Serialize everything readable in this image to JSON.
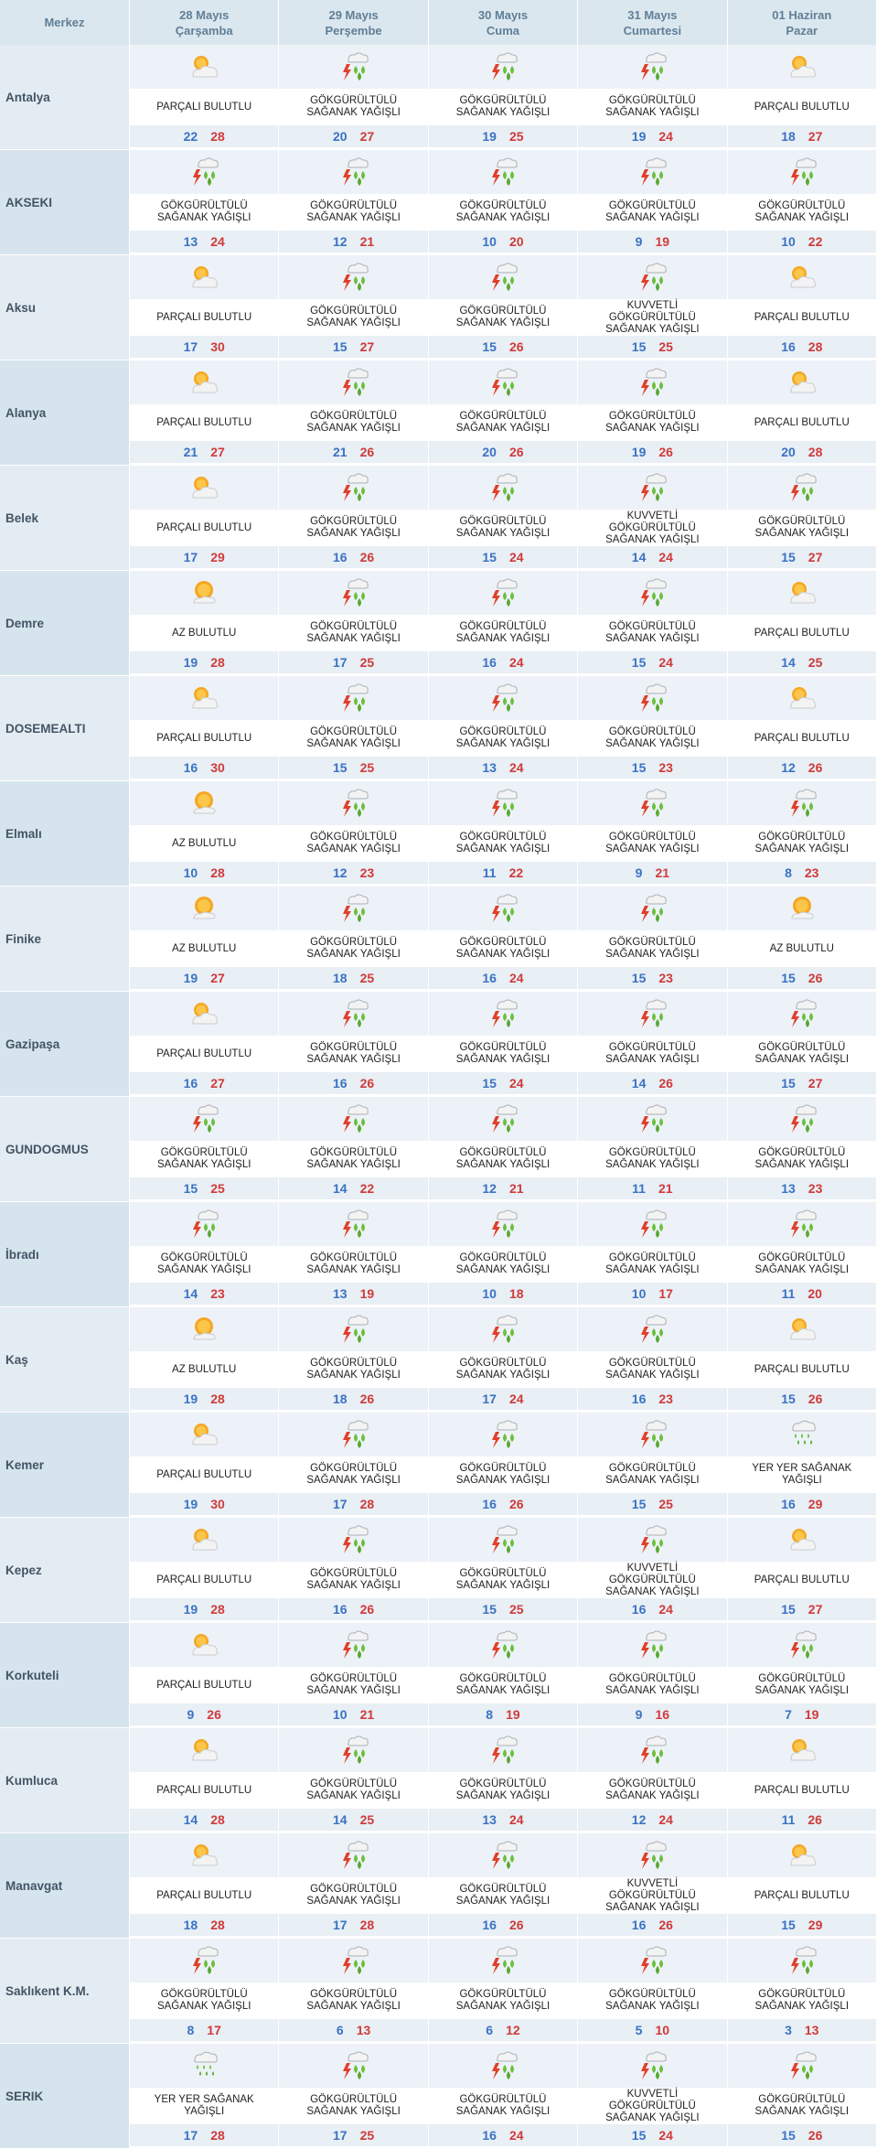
{
  "header": {
    "city_label": "Merkez",
    "days": [
      {
        "date": "28 Mayıs",
        "weekday": "Çarşamba"
      },
      {
        "date": "29 Mayıs",
        "weekday": "Perşembe"
      },
      {
        "date": "30 Mayıs",
        "weekday": "Cuma"
      },
      {
        "date": "31 Mayıs",
        "weekday": "Cumartesi"
      },
      {
        "date": "01 Haziran",
        "weekday": "Pazar"
      }
    ]
  },
  "colors": {
    "min_temp": "#3a72c4",
    "max_temp": "#d03a3a",
    "header_bg": "#dbe7ee"
  },
  "rows": [
    {
      "city": "Antalya",
      "days": [
        {
          "icon": "partly-cloudy-icon",
          "desc": "PARÇALI BULUTLU",
          "min": "22",
          "max": "28"
        },
        {
          "icon": "thunder-shower-icon",
          "desc": "GÖKGÜRÜLTÜLÜ SAĞANAK YAĞIŞLI",
          "min": "20",
          "max": "27"
        },
        {
          "icon": "thunder-shower-icon",
          "desc": "GÖKGÜRÜLTÜLÜ SAĞANAK YAĞIŞLI",
          "min": "19",
          "max": "25"
        },
        {
          "icon": "thunder-shower-icon",
          "desc": "GÖKGÜRÜLTÜLÜ SAĞANAK YAĞIŞLI",
          "min": "19",
          "max": "24"
        },
        {
          "icon": "partly-cloudy-icon",
          "desc": "PARÇALI BULUTLU",
          "min": "18",
          "max": "27"
        }
      ]
    },
    {
      "city": "AKSEKI",
      "days": [
        {
          "icon": "thunder-shower-icon",
          "desc": "GÖKGÜRÜLTÜLÜ SAĞANAK YAĞIŞLI",
          "min": "13",
          "max": "24"
        },
        {
          "icon": "thunder-shower-icon",
          "desc": "GÖKGÜRÜLTÜLÜ SAĞANAK YAĞIŞLI",
          "min": "12",
          "max": "21"
        },
        {
          "icon": "thunder-shower-icon",
          "desc": "GÖKGÜRÜLTÜLÜ SAĞANAK YAĞIŞLI",
          "min": "10",
          "max": "20"
        },
        {
          "icon": "thunder-shower-icon",
          "desc": "GÖKGÜRÜLTÜLÜ SAĞANAK YAĞIŞLI",
          "min": "9",
          "max": "19"
        },
        {
          "icon": "thunder-shower-icon",
          "desc": "GÖKGÜRÜLTÜLÜ SAĞANAK YAĞIŞLI",
          "min": "10",
          "max": "22"
        }
      ]
    },
    {
      "city": "Aksu",
      "days": [
        {
          "icon": "partly-cloudy-icon",
          "desc": "PARÇALI BULUTLU",
          "min": "17",
          "max": "30"
        },
        {
          "icon": "thunder-shower-icon",
          "desc": "GÖKGÜRÜLTÜLÜ SAĞANAK YAĞIŞLI",
          "min": "15",
          "max": "27"
        },
        {
          "icon": "thunder-shower-icon",
          "desc": "GÖKGÜRÜLTÜLÜ SAĞANAK YAĞIŞLI",
          "min": "15",
          "max": "26"
        },
        {
          "icon": "thunder-shower-icon",
          "desc": "KUVVETLİ GÖKGÜRÜLTÜLÜ SAĞANAK YAĞIŞLI",
          "min": "15",
          "max": "25"
        },
        {
          "icon": "partly-cloudy-icon",
          "desc": "PARÇALI BULUTLU",
          "min": "16",
          "max": "28"
        }
      ]
    },
    {
      "city": "Alanya",
      "days": [
        {
          "icon": "partly-cloudy-icon",
          "desc": "PARÇALI BULUTLU",
          "min": "21",
          "max": "27"
        },
        {
          "icon": "thunder-shower-icon",
          "desc": "GÖKGÜRÜLTÜLÜ SAĞANAK YAĞIŞLI",
          "min": "21",
          "max": "26"
        },
        {
          "icon": "thunder-shower-icon",
          "desc": "GÖKGÜRÜLTÜLÜ SAĞANAK YAĞIŞLI",
          "min": "20",
          "max": "26"
        },
        {
          "icon": "thunder-shower-icon",
          "desc": "GÖKGÜRÜLTÜLÜ SAĞANAK YAĞIŞLI",
          "min": "19",
          "max": "26"
        },
        {
          "icon": "partly-cloudy-icon",
          "desc": "PARÇALI BULUTLU",
          "min": "20",
          "max": "28"
        }
      ]
    },
    {
      "city": "Belek",
      "days": [
        {
          "icon": "partly-cloudy-icon",
          "desc": "PARÇALI BULUTLU",
          "min": "17",
          "max": "29"
        },
        {
          "icon": "thunder-shower-icon",
          "desc": "GÖKGÜRÜLTÜLÜ SAĞANAK YAĞIŞLI",
          "min": "16",
          "max": "26"
        },
        {
          "icon": "thunder-shower-icon",
          "desc": "GÖKGÜRÜLTÜLÜ SAĞANAK YAĞIŞLI",
          "min": "15",
          "max": "24"
        },
        {
          "icon": "thunder-shower-icon",
          "desc": "KUVVETLİ GÖKGÜRÜLTÜLÜ SAĞANAK YAĞIŞLI",
          "min": "14",
          "max": "24"
        },
        {
          "icon": "thunder-shower-icon",
          "desc": "GÖKGÜRÜLTÜLÜ SAĞANAK YAĞIŞLI",
          "min": "15",
          "max": "27"
        }
      ]
    },
    {
      "city": "Demre",
      "days": [
        {
          "icon": "mostly-sunny-icon",
          "desc": "AZ BULUTLU",
          "min": "19",
          "max": "28"
        },
        {
          "icon": "thunder-shower-icon",
          "desc": "GÖKGÜRÜLTÜLÜ SAĞANAK YAĞIŞLI",
          "min": "17",
          "max": "25"
        },
        {
          "icon": "thunder-shower-icon",
          "desc": "GÖKGÜRÜLTÜLÜ SAĞANAK YAĞIŞLI",
          "min": "16",
          "max": "24"
        },
        {
          "icon": "thunder-shower-icon",
          "desc": "GÖKGÜRÜLTÜLÜ SAĞANAK YAĞIŞLI",
          "min": "15",
          "max": "24"
        },
        {
          "icon": "partly-cloudy-icon",
          "desc": "PARÇALI BULUTLU",
          "min": "14",
          "max": "25"
        }
      ]
    },
    {
      "city": "DOSEMEALTI",
      "days": [
        {
          "icon": "partly-cloudy-icon",
          "desc": "PARÇALI BULUTLU",
          "min": "16",
          "max": "30"
        },
        {
          "icon": "thunder-shower-icon",
          "desc": "GÖKGÜRÜLTÜLÜ SAĞANAK YAĞIŞLI",
          "min": "15",
          "max": "25"
        },
        {
          "icon": "thunder-shower-icon",
          "desc": "GÖKGÜRÜLTÜLÜ SAĞANAK YAĞIŞLI",
          "min": "13",
          "max": "24"
        },
        {
          "icon": "thunder-shower-icon",
          "desc": "GÖKGÜRÜLTÜLÜ SAĞANAK YAĞIŞLI",
          "min": "15",
          "max": "23"
        },
        {
          "icon": "partly-cloudy-icon",
          "desc": "PARÇALI BULUTLU",
          "min": "12",
          "max": "26"
        }
      ]
    },
    {
      "city": "Elmalı",
      "days": [
        {
          "icon": "mostly-sunny-icon",
          "desc": "AZ BULUTLU",
          "min": "10",
          "max": "28"
        },
        {
          "icon": "thunder-shower-icon",
          "desc": "GÖKGÜRÜLTÜLÜ SAĞANAK YAĞIŞLI",
          "min": "12",
          "max": "23"
        },
        {
          "icon": "thunder-shower-icon",
          "desc": "GÖKGÜRÜLTÜLÜ SAĞANAK YAĞIŞLI",
          "min": "11",
          "max": "22"
        },
        {
          "icon": "thunder-shower-icon",
          "desc": "GÖKGÜRÜLTÜLÜ SAĞANAK YAĞIŞLI",
          "min": "9",
          "max": "21"
        },
        {
          "icon": "thunder-shower-icon",
          "desc": "GÖKGÜRÜLTÜLÜ SAĞANAK YAĞIŞLI",
          "min": "8",
          "max": "23"
        }
      ]
    },
    {
      "city": "Finike",
      "days": [
        {
          "icon": "mostly-sunny-icon",
          "desc": "AZ BULUTLU",
          "min": "19",
          "max": "27"
        },
        {
          "icon": "thunder-shower-icon",
          "desc": "GÖKGÜRÜLTÜLÜ SAĞANAK YAĞIŞLI",
          "min": "18",
          "max": "25"
        },
        {
          "icon": "thunder-shower-icon",
          "desc": "GÖKGÜRÜLTÜLÜ SAĞANAK YAĞIŞLI",
          "min": "16",
          "max": "24"
        },
        {
          "icon": "thunder-shower-icon",
          "desc": "GÖKGÜRÜLTÜLÜ SAĞANAK YAĞIŞLI",
          "min": "15",
          "max": "23"
        },
        {
          "icon": "mostly-sunny-icon",
          "desc": "AZ BULUTLU",
          "min": "15",
          "max": "26"
        }
      ]
    },
    {
      "city": "Gazipaşa",
      "days": [
        {
          "icon": "partly-cloudy-icon",
          "desc": "PARÇALI BULUTLU",
          "min": "16",
          "max": "27"
        },
        {
          "icon": "thunder-shower-icon",
          "desc": "GÖKGÜRÜLTÜLÜ SAĞANAK YAĞIŞLI",
          "min": "16",
          "max": "26"
        },
        {
          "icon": "thunder-shower-icon",
          "desc": "GÖKGÜRÜLTÜLÜ SAĞANAK YAĞIŞLI",
          "min": "15",
          "max": "24"
        },
        {
          "icon": "thunder-shower-icon",
          "desc": "GÖKGÜRÜLTÜLÜ SAĞANAK YAĞIŞLI",
          "min": "14",
          "max": "26"
        },
        {
          "icon": "thunder-shower-icon",
          "desc": "GÖKGÜRÜLTÜLÜ SAĞANAK YAĞIŞLI",
          "min": "15",
          "max": "27"
        }
      ]
    },
    {
      "city": "GUNDOGMUS",
      "days": [
        {
          "icon": "thunder-shower-icon",
          "desc": "GÖKGÜRÜLTÜLÜ SAĞANAK YAĞIŞLI",
          "min": "15",
          "max": "25"
        },
        {
          "icon": "thunder-shower-icon",
          "desc": "GÖKGÜRÜLTÜLÜ SAĞANAK YAĞIŞLI",
          "min": "14",
          "max": "22"
        },
        {
          "icon": "thunder-shower-icon",
          "desc": "GÖKGÜRÜLTÜLÜ SAĞANAK YAĞIŞLI",
          "min": "12",
          "max": "21"
        },
        {
          "icon": "thunder-shower-icon",
          "desc": "GÖKGÜRÜLTÜLÜ SAĞANAK YAĞIŞLI",
          "min": "11",
          "max": "21"
        },
        {
          "icon": "thunder-shower-icon",
          "desc": "GÖKGÜRÜLTÜLÜ SAĞANAK YAĞIŞLI",
          "min": "13",
          "max": "23"
        }
      ]
    },
    {
      "city": "İbradı",
      "days": [
        {
          "icon": "thunder-shower-icon",
          "desc": "GÖKGÜRÜLTÜLÜ SAĞANAK YAĞIŞLI",
          "min": "14",
          "max": "23"
        },
        {
          "icon": "thunder-shower-icon",
          "desc": "GÖKGÜRÜLTÜLÜ SAĞANAK YAĞIŞLI",
          "min": "13",
          "max": "19"
        },
        {
          "icon": "thunder-shower-icon",
          "desc": "GÖKGÜRÜLTÜLÜ SAĞANAK YAĞIŞLI",
          "min": "10",
          "max": "18"
        },
        {
          "icon": "thunder-shower-icon",
          "desc": "GÖKGÜRÜLTÜLÜ SAĞANAK YAĞIŞLI",
          "min": "10",
          "max": "17"
        },
        {
          "icon": "thunder-shower-icon",
          "desc": "GÖKGÜRÜLTÜLÜ SAĞANAK YAĞIŞLI",
          "min": "11",
          "max": "20"
        }
      ]
    },
    {
      "city": "Kaş",
      "days": [
        {
          "icon": "mostly-sunny-icon",
          "desc": "AZ BULUTLU",
          "min": "19",
          "max": "28"
        },
        {
          "icon": "thunder-shower-icon",
          "desc": "GÖKGÜRÜLTÜLÜ SAĞANAK YAĞIŞLI",
          "min": "18",
          "max": "26"
        },
        {
          "icon": "thunder-shower-icon",
          "desc": "GÖKGÜRÜLTÜLÜ SAĞANAK YAĞIŞLI",
          "min": "17",
          "max": "24"
        },
        {
          "icon": "thunder-shower-icon",
          "desc": "GÖKGÜRÜLTÜLÜ SAĞANAK YAĞIŞLI",
          "min": "16",
          "max": "23"
        },
        {
          "icon": "partly-cloudy-icon",
          "desc": "PARÇALI BULUTLU",
          "min": "15",
          "max": "26"
        }
      ]
    },
    {
      "city": "Kemer",
      "days": [
        {
          "icon": "partly-cloudy-icon",
          "desc": "PARÇALI BULUTLU",
          "min": "19",
          "max": "30"
        },
        {
          "icon": "thunder-shower-icon",
          "desc": "GÖKGÜRÜLTÜLÜ SAĞANAK YAĞIŞLI",
          "min": "17",
          "max": "28"
        },
        {
          "icon": "thunder-shower-icon",
          "desc": "GÖKGÜRÜLTÜLÜ SAĞANAK YAĞIŞLI",
          "min": "16",
          "max": "26"
        },
        {
          "icon": "thunder-shower-icon",
          "desc": "GÖKGÜRÜLTÜLÜ SAĞANAK YAĞIŞLI",
          "min": "15",
          "max": "25"
        },
        {
          "icon": "shower-icon",
          "desc": "YER YER SAĞANAK YAĞIŞLI",
          "min": "16",
          "max": "29"
        }
      ]
    },
    {
      "city": "Kepez",
      "days": [
        {
          "icon": "partly-cloudy-icon",
          "desc": "PARÇALI BULUTLU",
          "min": "19",
          "max": "28"
        },
        {
          "icon": "thunder-shower-icon",
          "desc": "GÖKGÜRÜLTÜLÜ SAĞANAK YAĞIŞLI",
          "min": "16",
          "max": "26"
        },
        {
          "icon": "thunder-shower-icon",
          "desc": "GÖKGÜRÜLTÜLÜ SAĞANAK YAĞIŞLI",
          "min": "15",
          "max": "25"
        },
        {
          "icon": "thunder-shower-icon",
          "desc": "KUVVETLİ GÖKGÜRÜLTÜLÜ SAĞANAK YAĞIŞLI",
          "min": "16",
          "max": "24"
        },
        {
          "icon": "partly-cloudy-icon",
          "desc": "PARÇALI BULUTLU",
          "min": "15",
          "max": "27"
        }
      ]
    },
    {
      "city": "Korkuteli",
      "days": [
        {
          "icon": "partly-cloudy-icon",
          "desc": "PARÇALI BULUTLU",
          "min": "9",
          "max": "26"
        },
        {
          "icon": "thunder-shower-icon",
          "desc": "GÖKGÜRÜLTÜLÜ SAĞANAK YAĞIŞLI",
          "min": "10",
          "max": "21"
        },
        {
          "icon": "thunder-shower-icon",
          "desc": "GÖKGÜRÜLTÜLÜ SAĞANAK YAĞIŞLI",
          "min": "8",
          "max": "19"
        },
        {
          "icon": "thunder-shower-icon",
          "desc": "GÖKGÜRÜLTÜLÜ SAĞANAK YAĞIŞLI",
          "min": "9",
          "max": "16"
        },
        {
          "icon": "thunder-shower-icon",
          "desc": "GÖKGÜRÜLTÜLÜ SAĞANAK YAĞIŞLI",
          "min": "7",
          "max": "19"
        }
      ]
    },
    {
      "city": "Kumluca",
      "days": [
        {
          "icon": "partly-cloudy-icon",
          "desc": "PARÇALI BULUTLU",
          "min": "14",
          "max": "28"
        },
        {
          "icon": "thunder-shower-icon",
          "desc": "GÖKGÜRÜLTÜLÜ SAĞANAK YAĞIŞLI",
          "min": "14",
          "max": "25"
        },
        {
          "icon": "thunder-shower-icon",
          "desc": "GÖKGÜRÜLTÜLÜ SAĞANAK YAĞIŞLI",
          "min": "13",
          "max": "24"
        },
        {
          "icon": "thunder-shower-icon",
          "desc": "GÖKGÜRÜLTÜLÜ SAĞANAK YAĞIŞLI",
          "min": "12",
          "max": "24"
        },
        {
          "icon": "partly-cloudy-icon",
          "desc": "PARÇALI BULUTLU",
          "min": "11",
          "max": "26"
        }
      ]
    },
    {
      "city": "Manavgat",
      "days": [
        {
          "icon": "partly-cloudy-icon",
          "desc": "PARÇALI BULUTLU",
          "min": "18",
          "max": "28"
        },
        {
          "icon": "thunder-shower-icon",
          "desc": "GÖKGÜRÜLTÜLÜ SAĞANAK YAĞIŞLI",
          "min": "17",
          "max": "28"
        },
        {
          "icon": "thunder-shower-icon",
          "desc": "GÖKGÜRÜLTÜLÜ SAĞANAK YAĞIŞLI",
          "min": "16",
          "max": "26"
        },
        {
          "icon": "thunder-shower-icon",
          "desc": "KUVVETLİ GÖKGÜRÜLTÜLÜ SAĞANAK YAĞIŞLI",
          "min": "16",
          "max": "26"
        },
        {
          "icon": "partly-cloudy-icon",
          "desc": "PARÇALI BULUTLU",
          "min": "15",
          "max": "29"
        }
      ]
    },
    {
      "city": "Saklıkent K.M.",
      "days": [
        {
          "icon": "thunder-shower-icon",
          "desc": "GÖKGÜRÜLTÜLÜ SAĞANAK YAĞIŞLI",
          "min": "8",
          "max": "17"
        },
        {
          "icon": "thunder-shower-icon",
          "desc": "GÖKGÜRÜLTÜLÜ SAĞANAK YAĞIŞLI",
          "min": "6",
          "max": "13"
        },
        {
          "icon": "thunder-shower-icon",
          "desc": "GÖKGÜRÜLTÜLÜ SAĞANAK YAĞIŞLI",
          "min": "6",
          "max": "12"
        },
        {
          "icon": "thunder-shower-icon",
          "desc": "GÖKGÜRÜLTÜLÜ SAĞANAK YAĞIŞLI",
          "min": "5",
          "max": "10"
        },
        {
          "icon": "thunder-shower-icon",
          "desc": "GÖKGÜRÜLTÜLÜ SAĞANAK YAĞIŞLI",
          "min": "3",
          "max": "13"
        }
      ]
    },
    {
      "city": "SERIK",
      "days": [
        {
          "icon": "shower-icon",
          "desc": "YER YER SAĞANAK YAĞIŞLI",
          "min": "17",
          "max": "28"
        },
        {
          "icon": "thunder-shower-icon",
          "desc": "GÖKGÜRÜLTÜLÜ SAĞANAK YAĞIŞLI",
          "min": "17",
          "max": "25"
        },
        {
          "icon": "thunder-shower-icon",
          "desc": "GÖKGÜRÜLTÜLÜ SAĞANAK YAĞIŞLI",
          "min": "16",
          "max": "24"
        },
        {
          "icon": "thunder-shower-icon",
          "desc": "KUVVETLİ GÖKGÜRÜLTÜLÜ SAĞANAK YAĞIŞLI",
          "min": "15",
          "max": "24"
        },
        {
          "icon": "thunder-shower-icon",
          "desc": "GÖKGÜRÜLTÜLÜ SAĞANAK YAĞIŞLI",
          "min": "15",
          "max": "26"
        }
      ]
    }
  ]
}
